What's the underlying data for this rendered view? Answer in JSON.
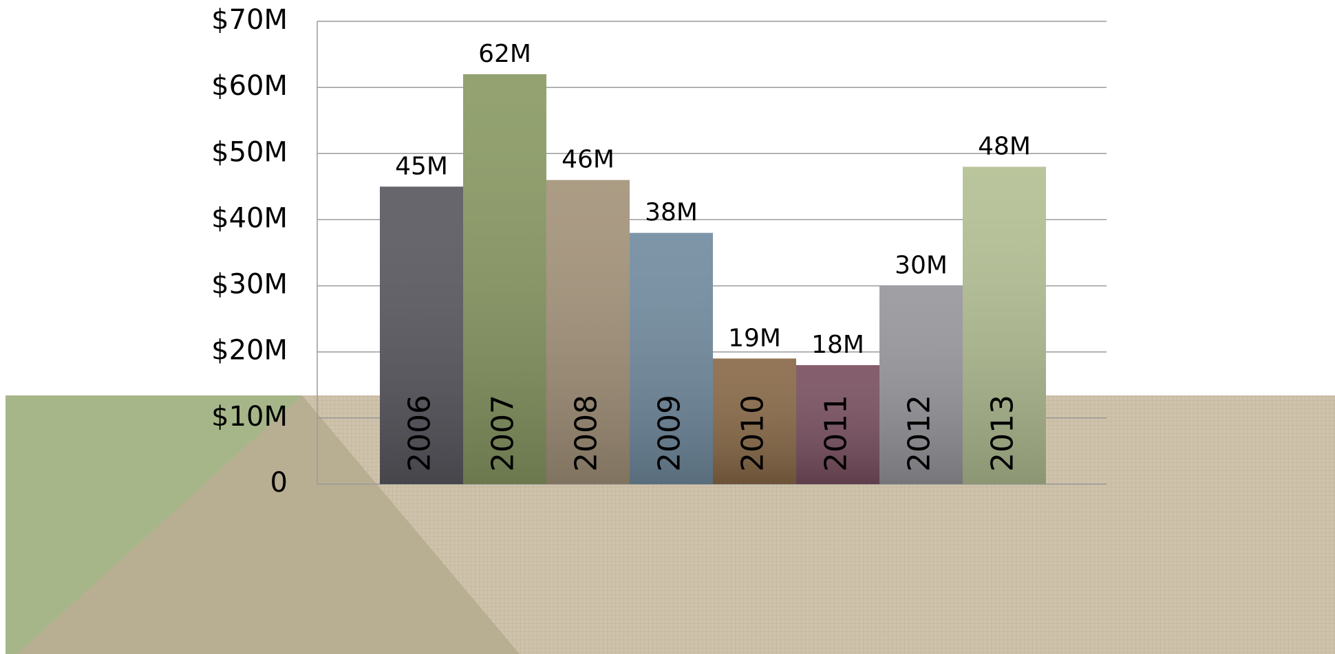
{
  "chart_data": {
    "type": "bar",
    "categories": [
      "2006",
      "2007",
      "2008",
      "2009",
      "2010",
      "2011",
      "2012",
      "2013"
    ],
    "values": [
      45,
      62,
      46,
      38,
      19,
      18,
      30,
      48
    ],
    "value_labels": [
      "45M",
      "62M",
      "46M",
      "38M",
      "19M",
      "18M",
      "30M",
      "48M"
    ],
    "colors": [
      "#5a5960",
      "#8a9a64",
      "#a4937a",
      "#728ca0",
      "#8a6a48",
      "#7a5060",
      "#98979c",
      "#b4c094"
    ],
    "ylim": [
      0,
      70
    ],
    "yticks": [
      0,
      {
        "value": 10,
        "label": "$10M"
      },
      {
        "value": 20,
        "label": "$20M"
      },
      {
        "value": 30,
        "label": "$30M"
      },
      {
        "value": 40,
        "label": "$40M"
      },
      {
        "value": 50,
        "label": "$50M"
      },
      {
        "value": 60,
        "label": "$60M"
      },
      {
        "value": 70,
        "label": "$70M"
      }
    ],
    "grid": true
  }
}
